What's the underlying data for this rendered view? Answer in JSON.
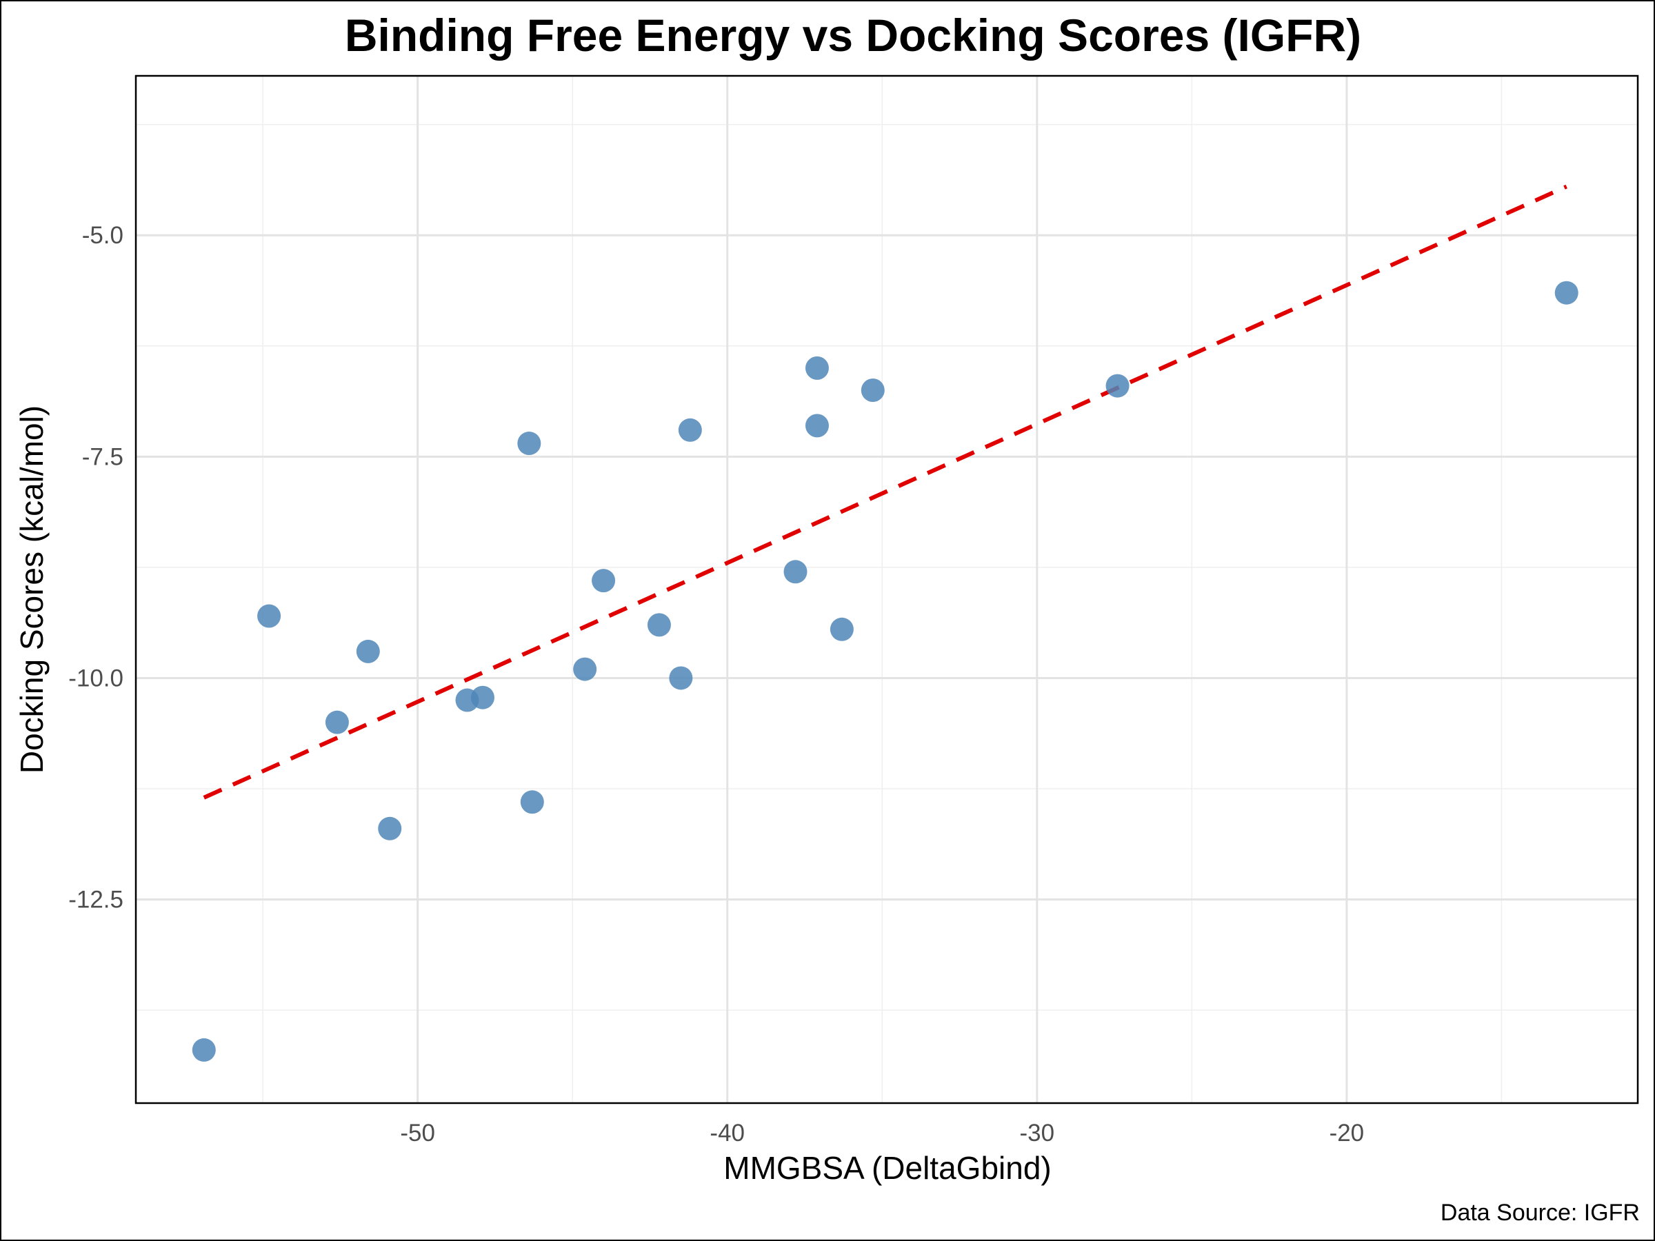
{
  "chart_data": {
    "type": "scatter",
    "title": "Binding Free Energy vs Docking Scores (IGFR)",
    "xlabel": "MMGBSA (DeltaGbind)",
    "ylabel": "Docking Scores (kcal/mol)",
    "caption": "Data Source: IGFR",
    "xlim": [
      -59.1,
      -10.6
    ],
    "ylim": [
      -14.8,
      -3.2
    ],
    "x_ticks": [
      -50,
      -40,
      -30,
      -20
    ],
    "x_tick_labels": [
      "-50",
      "-40",
      "-30",
      "-20"
    ],
    "y_ticks": [
      -12.5,
      -10.0,
      -7.5,
      -5.0
    ],
    "y_tick_labels": [
      "-12.5",
      "-10.0",
      "-7.5",
      "-5.0"
    ],
    "grid": true,
    "legend": "none",
    "point_color": "#4f86b8",
    "trend_color": "#e00000",
    "points": [
      {
        "x": -56.9,
        "y": -14.2
      },
      {
        "x": -54.8,
        "y": -9.3
      },
      {
        "x": -52.6,
        "y": -10.5
      },
      {
        "x": -51.6,
        "y": -9.7
      },
      {
        "x": -50.9,
        "y": -11.7
      },
      {
        "x": -48.4,
        "y": -10.25
      },
      {
        "x": -47.9,
        "y": -10.22
      },
      {
        "x": -46.4,
        "y": -7.35
      },
      {
        "x": -46.3,
        "y": -11.4
      },
      {
        "x": -44.6,
        "y": -9.9
      },
      {
        "x": -44.0,
        "y": -8.9
      },
      {
        "x": -42.2,
        "y": -9.4
      },
      {
        "x": -41.5,
        "y": -10.0
      },
      {
        "x": -41.2,
        "y": -7.2
      },
      {
        "x": -37.8,
        "y": -8.8
      },
      {
        "x": -37.1,
        "y": -6.5
      },
      {
        "x": -37.1,
        "y": -7.15
      },
      {
        "x": -36.3,
        "y": -9.45
      },
      {
        "x": -35.3,
        "y": -6.75
      },
      {
        "x": -27.4,
        "y": -6.7
      },
      {
        "x": -12.9,
        "y": -5.65
      }
    ],
    "trendline": {
      "x": [
        -56.9,
        -12.9
      ],
      "y": [
        -11.35,
        -4.45
      ]
    }
  }
}
